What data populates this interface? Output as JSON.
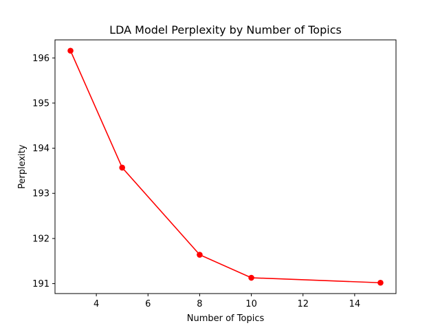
{
  "chart_data": {
    "type": "line",
    "title": "LDA Model Perplexity by Number of Topics",
    "xlabel": "Number of Topics",
    "ylabel": "Perplexity",
    "x": [
      3,
      5,
      8,
      10,
      15
    ],
    "series": [
      {
        "values": [
          196.16,
          193.57,
          191.64,
          191.13,
          191.02
        ],
        "color": "#ff0000",
        "marker": "circle"
      }
    ],
    "xlim": [
      2.4,
      15.6
    ],
    "ylim": [
      190.78,
      196.4
    ],
    "xticks": [
      4,
      6,
      8,
      10,
      12,
      14
    ],
    "yticks": [
      191,
      192,
      193,
      194,
      195,
      196
    ],
    "grid": false,
    "legend": "none"
  }
}
